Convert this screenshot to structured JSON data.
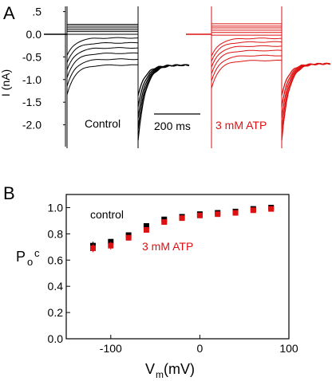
{
  "colors": {
    "control": "#000000",
    "atp": "#dd1111"
  },
  "panel_a": {
    "letter": "A"
  },
  "panel_b": {
    "letter": "B"
  },
  "chart_data": [
    {
      "type": "line",
      "panel": "A",
      "ylabel": "I (nA)",
      "ylim": [
        -2.0,
        0.5
      ],
      "yticks": [
        ".5",
        "0.0",
        "-0.5",
        "-1.0",
        "-1.5",
        "-2.0"
      ],
      "ytick_values": [
        0.5,
        0.0,
        -0.5,
        -1.0,
        -1.5,
        -2.0
      ],
      "scale_bar_label": "200 ms",
      "series": [
        {
          "name": "Control",
          "color": "#000000",
          "step_steady_nA": [
            0.22,
            0.18,
            0.14,
            0.1,
            0.06,
            0.0,
            -0.08,
            -0.19,
            -0.3,
            -0.42,
            -0.55,
            -0.68
          ],
          "tail_nA": -0.68
        },
        {
          "name": "3 mM ATP",
          "color": "#dd1111",
          "step_steady_nA": [
            0.23,
            0.18,
            0.14,
            0.09,
            0.04,
            -0.02,
            -0.09,
            -0.17,
            -0.26,
            -0.36,
            -0.47,
            -0.58
          ],
          "tail_nA": -0.65
        }
      ]
    },
    {
      "type": "scatter",
      "panel": "B",
      "xlabel": "V",
      "xlabel_sub": "m",
      "xlabel_unit": "(mV)",
      "ylabel": "P",
      "ylabel_sub": "o",
      "ylabel_sup": "c",
      "xlim": [
        -150,
        100
      ],
      "ylim": [
        0.0,
        1.1
      ],
      "xticks": [
        "-100",
        "0",
        "100"
      ],
      "xtick_values": [
        -100,
        0,
        100
      ],
      "yticks": [
        "0.0",
        "0.2",
        "0.4",
        "0.6",
        "0.8",
        "1.0"
      ],
      "ytick_values": [
        0.0,
        0.2,
        0.4,
        0.6,
        0.8,
        1.0
      ],
      "x": [
        -120,
        -100,
        -80,
        -60,
        -40,
        -20,
        0,
        20,
        40,
        60,
        80
      ],
      "series": [
        {
          "name": "control",
          "color": "#000000",
          "values": [
            0.71,
            0.74,
            0.79,
            0.86,
            0.91,
            0.93,
            0.95,
            0.96,
            0.97,
            0.99,
            1.0
          ],
          "errors": [
            0.03,
            0.02,
            0.02,
            0.02,
            0.01,
            0.01,
            0.01,
            0.01,
            0.01,
            0.01,
            0.01
          ]
        },
        {
          "name": "3 mM ATP",
          "color": "#dd1111",
          "values": [
            0.69,
            0.71,
            0.77,
            0.83,
            0.89,
            0.92,
            0.94,
            0.95,
            0.96,
            0.98,
            0.99
          ],
          "errors": [
            0.03,
            0.03,
            0.02,
            0.02,
            0.01,
            0.01,
            0.01,
            0.01,
            0.01,
            0.01,
            0.01
          ]
        }
      ]
    }
  ]
}
